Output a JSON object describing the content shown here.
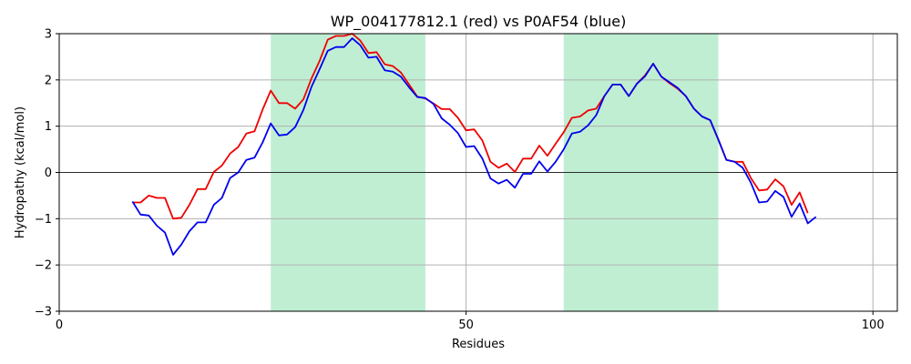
{
  "chart_data": {
    "type": "line",
    "title": "WP_004177812.1 (red) vs P0AF54 (blue)",
    "xlabel": "Residues",
    "ylabel": "Hydropathy (kcal/mol)",
    "xlim": [
      0,
      103
    ],
    "ylim": [
      -3,
      3
    ],
    "xticks": [
      0,
      50,
      100
    ],
    "yticks": [
      -3,
      -2,
      -1,
      0,
      1,
      2,
      3
    ],
    "grid": true,
    "zero_line": true,
    "highlight_regions": [
      {
        "start": 26,
        "end": 45,
        "color": "#c0eed3"
      },
      {
        "start": 62,
        "end": 81,
        "color": "#c0eed3"
      }
    ],
    "series": [
      {
        "color": "#ee0000",
        "x": [
          9,
          10,
          11,
          12,
          13,
          14,
          15,
          16,
          17,
          18,
          19,
          20,
          21,
          22,
          23,
          24,
          25,
          26,
          27,
          28,
          29,
          30,
          31,
          32,
          33,
          34,
          35,
          36,
          37,
          38,
          39,
          40,
          41,
          42,
          43,
          44,
          45,
          46,
          47,
          48,
          49,
          50,
          51,
          52,
          53,
          54,
          55,
          56,
          57,
          58,
          59,
          60,
          61,
          62,
          63,
          64,
          65,
          66,
          67,
          68,
          69,
          70,
          71,
          72,
          73,
          74,
          75,
          76,
          77,
          78,
          79,
          80,
          81,
          82,
          83,
          84,
          85,
          86,
          87,
          88,
          89,
          90,
          91,
          92
        ],
        "values": [
          -0.65,
          -0.65,
          -0.5,
          -0.55,
          -0.55,
          -1.0,
          -0.98,
          -0.7,
          -0.36,
          -0.36,
          0.01,
          0.15,
          0.41,
          0.55,
          0.84,
          0.89,
          1.36,
          1.77,
          1.5,
          1.5,
          1.38,
          1.58,
          2.03,
          2.41,
          2.87,
          2.95,
          2.95,
          3.0,
          2.85,
          2.58,
          2.6,
          2.34,
          2.3,
          2.16,
          1.9,
          1.64,
          1.6,
          1.49,
          1.37,
          1.37,
          1.18,
          0.91,
          0.93,
          0.69,
          0.23,
          0.1,
          0.19,
          0.01,
          0.3,
          0.3,
          0.58,
          0.36,
          0.62,
          0.87,
          1.18,
          1.21,
          1.34,
          1.38,
          1.65,
          1.9,
          1.9,
          1.65,
          1.92,
          2.1,
          2.35,
          2.07,
          1.93,
          1.81,
          1.65,
          1.38,
          1.21,
          1.13,
          0.71,
          0.27,
          0.23,
          0.23,
          -0.12,
          -0.39,
          -0.37,
          -0.15,
          -0.3,
          -0.7,
          -0.43,
          -0.88
        ]
      },
      {
        "color": "#0000ee",
        "x": [
          9,
          10,
          11,
          12,
          13,
          14,
          15,
          16,
          17,
          18,
          19,
          20,
          21,
          22,
          23,
          24,
          25,
          26,
          27,
          28,
          29,
          30,
          31,
          32,
          33,
          34,
          35,
          36,
          37,
          38,
          39,
          40,
          41,
          42,
          43,
          44,
          45,
          46,
          47,
          48,
          49,
          50,
          51,
          52,
          53,
          54,
          55,
          56,
          57,
          58,
          59,
          60,
          61,
          62,
          63,
          64,
          65,
          66,
          67,
          68,
          69,
          70,
          71,
          72,
          73,
          74,
          75,
          76,
          77,
          78,
          79,
          80,
          81,
          82,
          83,
          84,
          85,
          86,
          87,
          88,
          89,
          90,
          91,
          92,
          93
        ],
        "values": [
          -0.63,
          -0.91,
          -0.93,
          -1.15,
          -1.3,
          -1.78,
          -1.56,
          -1.27,
          -1.08,
          -1.08,
          -0.7,
          -0.55,
          -0.12,
          0.0,
          0.27,
          0.32,
          0.65,
          1.06,
          0.8,
          0.82,
          0.98,
          1.35,
          1.85,
          2.23,
          2.63,
          2.71,
          2.71,
          2.9,
          2.75,
          2.48,
          2.5,
          2.21,
          2.18,
          2.07,
          1.84,
          1.63,
          1.61,
          1.48,
          1.17,
          1.03,
          0.85,
          0.55,
          0.57,
          0.3,
          -0.13,
          -0.24,
          -0.16,
          -0.33,
          -0.03,
          -0.03,
          0.24,
          0.02,
          0.23,
          0.5,
          0.84,
          0.88,
          1.02,
          1.24,
          1.65,
          1.9,
          1.9,
          1.65,
          1.92,
          2.08,
          2.35,
          2.07,
          1.95,
          1.83,
          1.65,
          1.38,
          1.21,
          1.13,
          0.71,
          0.27,
          0.23,
          0.1,
          -0.22,
          -0.65,
          -0.63,
          -0.4,
          -0.53,
          -0.96,
          -0.67,
          -1.1,
          -0.96
        ]
      }
    ]
  }
}
